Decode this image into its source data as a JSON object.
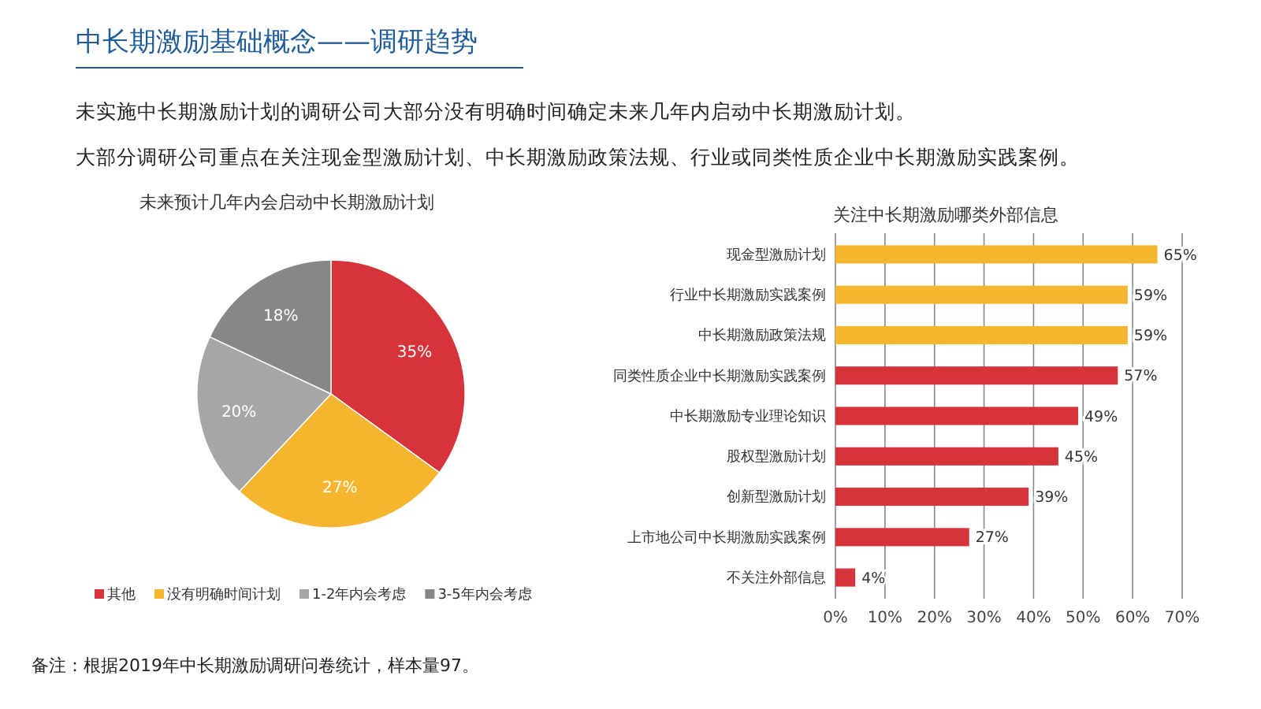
{
  "chart_data": [
    {
      "type": "other",
      "title": "中长期激励基础概念——调研趋势",
      "annotations": [
        "未实施中长期激励计划的调研公司大部分没有明确时间确定未来几年内启动中长期激励计划。",
        "大部分调研公司重点在关注现金型激励计划、中长期激励政策法规、行业或同类性质企业中长期激励实践案例。",
        "备注：根据2019年中长期激励调研问卷统计，样本量97。"
      ]
    },
    {
      "type": "pie",
      "title": "未来预计几年内会启动中长期激励计划",
      "categories": [
        "其他",
        "没有明确时间计划",
        "1-2年内会考虑",
        "3-5年内会考虑"
      ],
      "values": [
        35,
        27,
        20,
        18
      ],
      "colors": [
        "#d6333a",
        "#f5b52e",
        "#a6a6a6",
        "#878787"
      ],
      "value_labels": [
        "35%",
        "27%",
        "20%",
        "18%"
      ],
      "legend": "bottom"
    },
    {
      "type": "bar",
      "orientation": "horizontal",
      "title": "关注中长期激励哪类外部信息",
      "categories": [
        "现金型激励计划",
        "行业中长期激励实践案例",
        "中长期激励政策法规",
        "同类性质企业中长期激励实践案例",
        "中长期激励专业理论知识",
        "股权型激励计划",
        "创新型激励计划",
        "上市地公司中长期激励实践案例",
        "不关注外部信息"
      ],
      "values": [
        65,
        59,
        59,
        57,
        49,
        45,
        39,
        27,
        4
      ],
      "colors": [
        "#f5b52e",
        "#f5b52e",
        "#f5b52e",
        "#d6333a",
        "#d6333a",
        "#d6333a",
        "#d6333a",
        "#d6333a",
        "#d6333a"
      ],
      "value_labels": [
        "65%",
        "59%",
        "59%",
        "57%",
        "49%",
        "45%",
        "39%",
        "27%",
        "4%"
      ],
      "xlim": [
        0,
        70
      ],
      "xticks": [
        {
          "value": 0,
          "label": "0%"
        },
        {
          "value": 10,
          "label": "10%"
        },
        {
          "value": 20,
          "label": "20%"
        },
        {
          "value": 30,
          "label": "30%"
        },
        {
          "value": 40,
          "label": "40%"
        },
        {
          "value": 50,
          "label": "50%"
        },
        {
          "value": 60,
          "label": "60%"
        },
        {
          "value": 70,
          "label": "70%"
        }
      ],
      "grid": "x"
    }
  ]
}
